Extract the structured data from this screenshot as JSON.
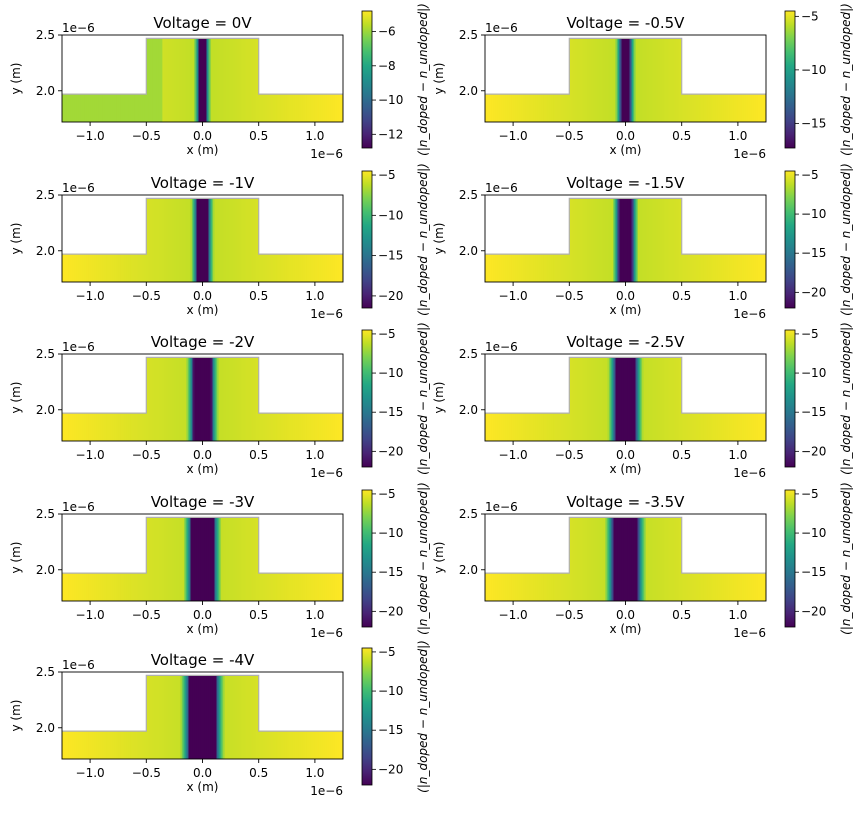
{
  "figure": {
    "type": "heatmap-grid",
    "colormap": "viridis"
  },
  "chart_data": [
    {
      "type": "heatmap",
      "title": "Voltage = 0V",
      "voltage": 0,
      "xlabel": "x (m)",
      "ylabel": "y (m)",
      "x_offset_label": "1e−6",
      "y_offset_label": "1e−6",
      "xlim": [
        -1.25,
        1.25
      ],
      "ylim": [
        1.72,
        2.5
      ],
      "xticks": [
        "−1.0",
        "−0.5",
        "0.0",
        "0.5",
        "1.0"
      ],
      "xtick_values": [
        -1.0,
        -0.5,
        0.0,
        0.5,
        1.0
      ],
      "yticks": [
        "2.0",
        "2.5"
      ],
      "ytick_values": [
        2.0,
        2.5
      ],
      "colorbar_label": "(|n_doped − n_undoped|)",
      "colorbar_range": [
        -12.8,
        -4.8
      ],
      "colorbar_ticks": [
        "−6",
        "−8",
        "−10",
        "−12"
      ],
      "colorbar_tick_values": [
        -6,
        -8,
        -10,
        -12
      ],
      "depletion_half_width": 0.03
    },
    {
      "type": "heatmap",
      "title": "Voltage = -0.5V",
      "voltage": -0.5,
      "xlabel": "x (m)",
      "ylabel": "y (m)",
      "x_offset_label": "1e−6",
      "y_offset_label": "1e−6",
      "xlim": [
        -1.25,
        1.25
      ],
      "ylim": [
        1.72,
        2.5
      ],
      "xticks": [
        "−1.0",
        "−0.5",
        "0.0",
        "0.5",
        "1.0"
      ],
      "xtick_values": [
        -1.0,
        -0.5,
        0.0,
        0.5,
        1.0
      ],
      "yticks": [
        "2.0",
        "2.5"
      ],
      "ytick_values": [
        2.0,
        2.5
      ],
      "colorbar_label": "(|n_doped − n_undoped|)",
      "colorbar_range": [
        -17.3,
        -4.5
      ],
      "colorbar_ticks": [
        "−5",
        "−10",
        "−15"
      ],
      "colorbar_tick_values": [
        -5,
        -10,
        -15
      ],
      "depletion_half_width": 0.04
    },
    {
      "type": "heatmap",
      "title": "Voltage = -1V",
      "voltage": -1,
      "xlabel": "x (m)",
      "ylabel": "y (m)",
      "x_offset_label": "1e−6",
      "y_offset_label": "1e−6",
      "xlim": [
        -1.25,
        1.25
      ],
      "ylim": [
        1.72,
        2.5
      ],
      "xticks": [
        "−1.0",
        "−0.5",
        "0.0",
        "0.5",
        "1.0"
      ],
      "xtick_values": [
        -1.0,
        -0.5,
        0.0,
        0.5,
        1.0
      ],
      "yticks": [
        "2.0",
        "2.5"
      ],
      "ytick_values": [
        2.0,
        2.5
      ],
      "colorbar_label": "(|n_doped − n_undoped|)",
      "colorbar_range": [
        -21.5,
        -4.5
      ],
      "colorbar_ticks": [
        "−5",
        "−10",
        "−15",
        "−20"
      ],
      "colorbar_tick_values": [
        -5,
        -10,
        -15,
        -20
      ],
      "depletion_half_width": 0.05
    },
    {
      "type": "heatmap",
      "title": "Voltage = -1.5V",
      "voltage": -1.5,
      "xlabel": "x (m)",
      "ylabel": "y (m)",
      "x_offset_label": "1e−6",
      "y_offset_label": "1e−6",
      "xlim": [
        -1.25,
        1.25
      ],
      "ylim": [
        1.72,
        2.5
      ],
      "xticks": [
        "−1.0",
        "−0.5",
        "0.0",
        "0.5",
        "1.0"
      ],
      "xtick_values": [
        -1.0,
        -0.5,
        0.0,
        0.5,
        1.0
      ],
      "yticks": [
        "2.0",
        "2.5"
      ],
      "ytick_values": [
        2.0,
        2.5
      ],
      "colorbar_label": "(|n_doped − n_undoped|)",
      "colorbar_range": [
        -22.0,
        -4.5
      ],
      "colorbar_ticks": [
        "−5",
        "−10",
        "−15",
        "−20"
      ],
      "colorbar_tick_values": [
        -5,
        -10,
        -15,
        -20
      ],
      "depletion_half_width": 0.06
    },
    {
      "type": "heatmap",
      "title": "Voltage = -2V",
      "voltage": -2,
      "xlabel": "x (m)",
      "ylabel": "y (m)",
      "x_offset_label": "1e−6",
      "y_offset_label": "1e−6",
      "xlim": [
        -1.25,
        1.25
      ],
      "ylim": [
        1.72,
        2.5
      ],
      "xticks": [
        "−1.0",
        "−0.5",
        "0.0",
        "0.5",
        "1.0"
      ],
      "xtick_values": [
        -1.0,
        -0.5,
        0.0,
        0.5,
        1.0
      ],
      "yticks": [
        "2.0",
        "2.5"
      ],
      "ytick_values": [
        2.0,
        2.5
      ],
      "colorbar_label": "(|n_doped − n_undoped|)",
      "colorbar_range": [
        -22.0,
        -4.5
      ],
      "colorbar_ticks": [
        "−5",
        "−10",
        "−15",
        "−20"
      ],
      "colorbar_tick_values": [
        -5,
        -10,
        -15,
        -20
      ],
      "depletion_half_width": 0.08
    },
    {
      "type": "heatmap",
      "title": "Voltage = -2.5V",
      "voltage": -2.5,
      "xlabel": "x (m)",
      "ylabel": "y (m)",
      "x_offset_label": "1e−6",
      "y_offset_label": "1e−6",
      "xlim": [
        -1.25,
        1.25
      ],
      "ylim": [
        1.72,
        2.5
      ],
      "xticks": [
        "−1.0",
        "−0.5",
        "0.0",
        "0.5",
        "1.0"
      ],
      "xtick_values": [
        -1.0,
        -0.5,
        0.0,
        0.5,
        1.0
      ],
      "yticks": [
        "2.0",
        "2.5"
      ],
      "ytick_values": [
        2.0,
        2.5
      ],
      "colorbar_label": "(|n_doped − n_undoped|)",
      "colorbar_range": [
        -22.0,
        -4.5
      ],
      "colorbar_ticks": [
        "−5",
        "−10",
        "−15",
        "−20"
      ],
      "colorbar_tick_values": [
        -5,
        -10,
        -15,
        -20
      ],
      "depletion_half_width": 0.09
    },
    {
      "type": "heatmap",
      "title": "Voltage = -3V",
      "voltage": -3,
      "xlabel": "x (m)",
      "ylabel": "y (m)",
      "x_offset_label": "1e−6",
      "y_offset_label": "1e−6",
      "xlim": [
        -1.25,
        1.25
      ],
      "ylim": [
        1.72,
        2.5
      ],
      "xticks": [
        "−1.0",
        "−0.5",
        "0.0",
        "0.5",
        "1.0"
      ],
      "xtick_values": [
        -1.0,
        -0.5,
        0.0,
        0.5,
        1.0
      ],
      "yticks": [
        "2.0",
        "2.5"
      ],
      "ytick_values": [
        2.0,
        2.5
      ],
      "colorbar_label": "(|n_doped − n_undoped|)",
      "colorbar_range": [
        -22.0,
        -4.5
      ],
      "colorbar_ticks": [
        "−5",
        "−10",
        "−15",
        "−20"
      ],
      "colorbar_tick_values": [
        -5,
        -10,
        -15,
        -20
      ],
      "depletion_half_width": 0.1
    },
    {
      "type": "heatmap",
      "title": "Voltage = -3.5V",
      "voltage": -3.5,
      "xlabel": "x (m)",
      "ylabel": "y (m)",
      "x_offset_label": "1e−6",
      "y_offset_label": "1e−6",
      "xlim": [
        -1.25,
        1.25
      ],
      "ylim": [
        1.72,
        2.5
      ],
      "xticks": [
        "−1.0",
        "−0.5",
        "0.0",
        "0.5",
        "1.0"
      ],
      "xtick_values": [
        -1.0,
        -0.5,
        0.0,
        0.5,
        1.0
      ],
      "yticks": [
        "2.0",
        "2.5"
      ],
      "ytick_values": [
        2.0,
        2.5
      ],
      "colorbar_label": "(|n_doped − n_undoped|)",
      "colorbar_range": [
        -22.0,
        -4.5
      ],
      "colorbar_ticks": [
        "−5",
        "−10",
        "−15",
        "−20"
      ],
      "colorbar_tick_values": [
        -5,
        -10,
        -15,
        -20
      ],
      "depletion_half_width": 0.11
    },
    {
      "type": "heatmap",
      "title": "Voltage = -4V",
      "voltage": -4,
      "xlabel": "x (m)",
      "ylabel": "y (m)",
      "x_offset_label": "1e−6",
      "y_offset_label": "1e−6",
      "xlim": [
        -1.25,
        1.25
      ],
      "ylim": [
        1.72,
        2.5
      ],
      "xticks": [
        "−1.0",
        "−0.5",
        "0.0",
        "0.5",
        "1.0"
      ],
      "xtick_values": [
        -1.0,
        -0.5,
        0.0,
        0.5,
        1.0
      ],
      "yticks": [
        "2.0",
        "2.5"
      ],
      "ytick_values": [
        2.0,
        2.5
      ],
      "colorbar_label": "(|n_doped − n_undoped|)",
      "colorbar_range": [
        -22.0,
        -4.5
      ],
      "colorbar_ticks": [
        "−5",
        "−10",
        "−15",
        "−20"
      ],
      "colorbar_tick_values": [
        -5,
        -10,
        -15,
        -20
      ],
      "depletion_half_width": 0.12
    }
  ],
  "geometry": {
    "rib_x_range": [
      -0.5,
      0.5
    ],
    "rib_top_y": 2.47,
    "slab_top_y": 1.97,
    "bottom_y": 1.72
  }
}
